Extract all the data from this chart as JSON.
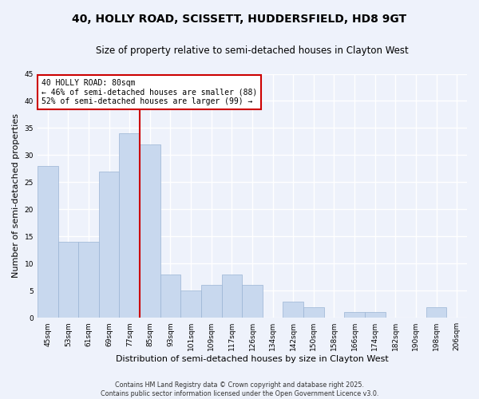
{
  "title_line1": "40, HOLLY ROAD, SCISSETT, HUDDERSFIELD, HD8 9GT",
  "title_line2": "Size of property relative to semi-detached houses in Clayton West",
  "xlabel": "Distribution of semi-detached houses by size in Clayton West",
  "ylabel": "Number of semi-detached properties",
  "bar_color": "#c8d8ee",
  "bar_edge_color": "#9ab4d4",
  "background_color": "#eef2fb",
  "grid_color": "#ffffff",
  "categories": [
    "45sqm",
    "53sqm",
    "61sqm",
    "69sqm",
    "77sqm",
    "85sqm",
    "93sqm",
    "101sqm",
    "109sqm",
    "117sqm",
    "126sqm",
    "134sqm",
    "142sqm",
    "150sqm",
    "158sqm",
    "166sqm",
    "174sqm",
    "182sqm",
    "190sqm",
    "198sqm",
    "206sqm"
  ],
  "values": [
    28,
    14,
    14,
    27,
    34,
    32,
    8,
    5,
    6,
    8,
    6,
    0,
    3,
    2,
    0,
    1,
    1,
    0,
    0,
    2,
    0
  ],
  "vline_color": "#cc0000",
  "vline_x_index": 4,
  "annotation_title": "40 HOLLY ROAD: 80sqm",
  "annotation_line2": "← 46% of semi-detached houses are smaller (88)",
  "annotation_line3": "52% of semi-detached houses are larger (99) →",
  "annotation_box_color": "#cc0000",
  "ylim": [
    0,
    45
  ],
  "yticks": [
    0,
    5,
    10,
    15,
    20,
    25,
    30,
    35,
    40,
    45
  ],
  "footnote_line1": "Contains HM Land Registry data © Crown copyright and database right 2025.",
  "footnote_line2": "Contains public sector information licensed under the Open Government Licence v3.0.",
  "title_fontsize": 10,
  "subtitle_fontsize": 8.5,
  "axis_label_fontsize": 8,
  "tick_fontsize": 6.5,
  "annotation_fontsize": 7,
  "footnote_fontsize": 5.8
}
